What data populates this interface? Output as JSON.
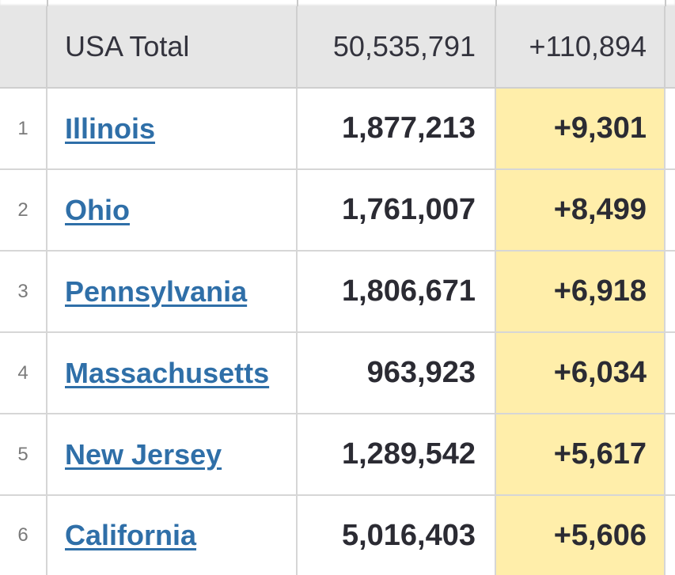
{
  "total": {
    "label": "USA Total",
    "cases": "50,535,791",
    "new_cases": "+110,894"
  },
  "rows": [
    {
      "rank": "1",
      "state": "Illinois",
      "cases": "1,877,213",
      "new_cases": "+9,301"
    },
    {
      "rank": "2",
      "state": "Ohio",
      "cases": "1,761,007",
      "new_cases": "+8,499"
    },
    {
      "rank": "3",
      "state": "Pennsylvania",
      "cases": "1,806,671",
      "new_cases": "+6,918"
    },
    {
      "rank": "4",
      "state": "Massachusetts",
      "cases": "963,923",
      "new_cases": "+6,034"
    },
    {
      "rank": "5",
      "state": "New Jersey",
      "cases": "1,289,542",
      "new_cases": "+5,617"
    },
    {
      "rank": "6",
      "state": "California",
      "cases": "5,016,403",
      "new_cases": "+5,606"
    }
  ],
  "colors": {
    "link": "#2f6fa8",
    "highlight": "#ffeeaa",
    "total_row_bg": "#e6e6e6"
  }
}
